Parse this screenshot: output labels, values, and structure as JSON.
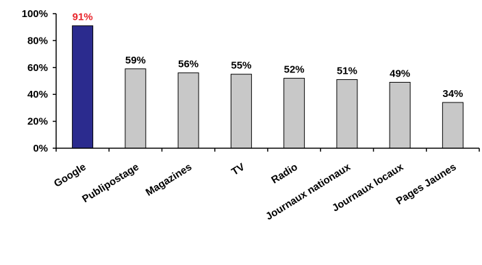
{
  "chart_data": {
    "type": "bar",
    "categories": [
      "Google",
      "Publipostage",
      "Magazines",
      "TV",
      "Radio",
      "Journaux nationaux",
      "Journaux locaux",
      "Pages Jaunes"
    ],
    "values": [
      91,
      59,
      56,
      55,
      52,
      51,
      49,
      34
    ],
    "data_labels": [
      "91%",
      "59%",
      "56%",
      "55%",
      "52%",
      "51%",
      "49%",
      "34%"
    ],
    "y_ticks": [
      0,
      20,
      40,
      60,
      80,
      100
    ],
    "y_tick_labels": [
      "0%",
      "20%",
      "40%",
      "60%",
      "80%",
      "100%"
    ],
    "ylim": [
      0,
      100
    ],
    "grid": false,
    "legend": "none",
    "colors": {
      "highlight_bar": "#2B2B8E",
      "bar": "#C8C8C8",
      "bar_edge": "#000000",
      "highlight_label": "#E8232A",
      "label": "#000000"
    }
  }
}
